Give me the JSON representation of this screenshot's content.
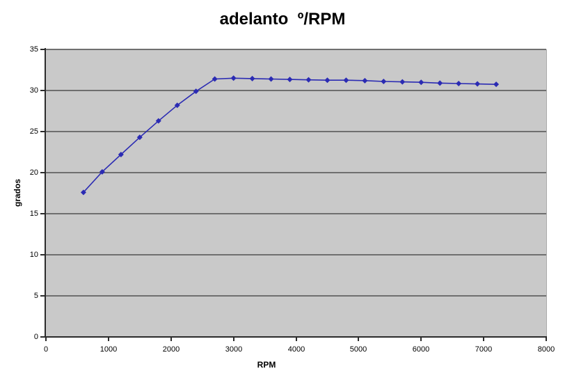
{
  "chart_data": {
    "type": "line",
    "title": "adelanto  º/RPM",
    "xlabel": "RPM",
    "ylabel": "grados",
    "xlim": [
      0,
      8000
    ],
    "ylim": [
      0,
      35
    ],
    "x_ticks": [
      0,
      1000,
      2000,
      3000,
      4000,
      5000,
      6000,
      7000,
      8000
    ],
    "y_ticks": [
      0,
      5,
      10,
      15,
      20,
      25,
      30,
      35
    ],
    "grid": "horizontal-gridlines",
    "legend": "none",
    "plot_bg": "#c9c9c9",
    "gridline_color": "#6f6f6f",
    "axis_color": "#2b2b2b",
    "series": [
      {
        "color": "#2b2bb3",
        "marker": "diamond",
        "x": [
          600,
          900,
          1200,
          1500,
          1800,
          2100,
          2400,
          2700,
          3000,
          3300,
          3600,
          3900,
          4200,
          4500,
          4800,
          5100,
          5400,
          5700,
          6000,
          6300,
          6600,
          6900,
          7200
        ],
        "y": [
          17.6,
          20.1,
          22.2,
          24.3,
          26.3,
          28.2,
          29.9,
          31.4,
          31.5,
          31.45,
          31.4,
          31.35,
          31.3,
          31.25,
          31.25,
          31.2,
          31.1,
          31.05,
          31.0,
          30.9,
          30.85,
          30.8,
          30.75
        ]
      }
    ]
  }
}
